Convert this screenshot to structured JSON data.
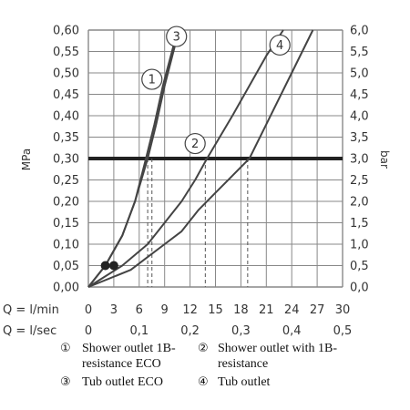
{
  "chart_data": {
    "type": "line",
    "left_axis": {
      "label": "MPa",
      "range": [
        0,
        0.6
      ],
      "ticks": [
        "0,60",
        "0,55",
        "0,50",
        "0,45",
        "0,40",
        "0,35",
        "0,30",
        "0,25",
        "0,20",
        "0,15",
        "0,10",
        "0,05",
        "0,00"
      ]
    },
    "right_axis": {
      "label": "bar",
      "range": [
        0,
        6
      ],
      "ticks": [
        "6,0",
        "5,5",
        "5,0",
        "4,5",
        "4,0",
        "3,5",
        "3,0",
        "2,5",
        "2,0",
        "1,5",
        "1,0",
        "0,5",
        "0,0"
      ]
    },
    "x_axis_lmin": {
      "label": "Q = l/min",
      "range": [
        0,
        30
      ],
      "ticks": [
        "0",
        "3",
        "6",
        "9",
        "12",
        "15",
        "18",
        "21",
        "24",
        "27",
        "30"
      ]
    },
    "x_axis_lsec": {
      "label": "Q = l/sec",
      "ticks": [
        "0",
        "0,1",
        "0,2",
        "0,3",
        "0,4",
        "0,5"
      ]
    },
    "grid": true,
    "reference_line_mpa": 0.3,
    "series": [
      {
        "name": "Shower outlet 1B-resistance ECO",
        "badge": "1",
        "badge_at": [
          7.5,
          0.485
        ],
        "points": [
          [
            0,
            0
          ],
          [
            2,
            0.05
          ],
          [
            4,
            0.12
          ],
          [
            5.5,
            0.2
          ],
          [
            6.8,
            0.3
          ],
          [
            7.8,
            0.38
          ],
          [
            8.8,
            0.47
          ],
          [
            10,
            0.56
          ],
          [
            10.6,
            0.6
          ]
        ]
      },
      {
        "name": "Shower outlet with 1B-resistance",
        "badge": "2",
        "badge_at": [
          12.6,
          0.335
        ],
        "points": [
          [
            0,
            0
          ],
          [
            4,
            0.05
          ],
          [
            7,
            0.1
          ],
          [
            9,
            0.15
          ],
          [
            11,
            0.2
          ],
          [
            12.6,
            0.25
          ],
          [
            14,
            0.3
          ],
          [
            17,
            0.4
          ],
          [
            21,
            0.54
          ],
          [
            23,
            0.6
          ]
        ]
      },
      {
        "name": "Tub outlet ECO",
        "badge": "3",
        "badge_at": [
          10.4,
          0.585
        ],
        "points": [
          [
            0,
            0
          ],
          [
            2,
            0.05
          ],
          [
            4,
            0.12
          ],
          [
            5.5,
            0.2
          ],
          [
            7,
            0.3
          ],
          [
            8,
            0.38
          ],
          [
            9,
            0.47
          ],
          [
            10.3,
            0.57
          ],
          [
            11,
            0.6
          ]
        ]
      },
      {
        "name": "Tub outlet",
        "badge": "4",
        "badge_at": [
          22.6,
          0.565
        ],
        "points": [
          [
            0,
            0
          ],
          [
            5,
            0.04
          ],
          [
            7,
            0.07
          ],
          [
            9,
            0.1
          ],
          [
            11,
            0.13
          ],
          [
            13,
            0.18
          ],
          [
            15,
            0.22
          ],
          [
            17,
            0.26
          ],
          [
            19,
            0.3
          ],
          [
            21,
            0.38
          ],
          [
            24,
            0.5
          ],
          [
            26.5,
            0.6
          ]
        ]
      }
    ],
    "operating_points": [
      [
        2,
        0.05
      ],
      [
        3,
        0.05
      ]
    ],
    "drop_lines_at_lmin": [
      7.0,
      7.5,
      13.8,
      18.8
    ],
    "legend": [
      {
        "mark": "①",
        "line1": "Shower outlet 1B-",
        "line2": "resistance ECO"
      },
      {
        "mark": "②",
        "line1": "Shower outlet with 1B-",
        "line2": "resistance"
      },
      {
        "mark": "③",
        "line1": "Tub outlet ECO"
      },
      {
        "mark": "④",
        "line1": "Tub outlet"
      }
    ],
    "colors": {
      "line": "#444444",
      "grid": "#888888",
      "reference": "#222222"
    }
  }
}
